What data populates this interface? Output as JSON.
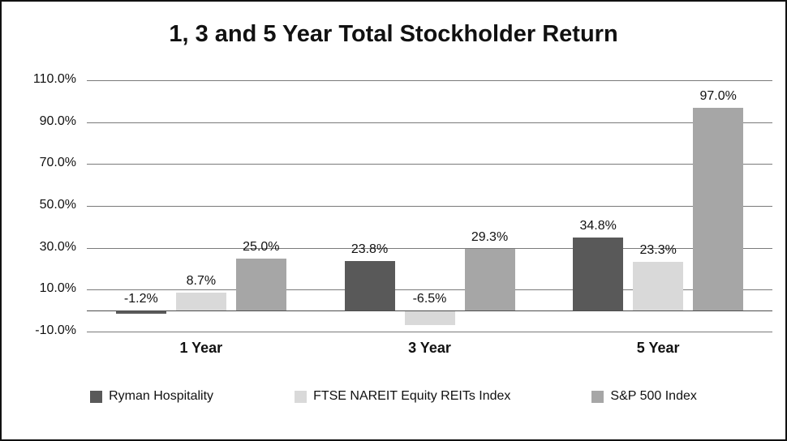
{
  "chart_data": {
    "type": "bar",
    "title": "1, 3 and 5 Year Total Stockholder Return",
    "categories": [
      "1 Year",
      "3 Year",
      "5 Year"
    ],
    "series": [
      {
        "name": "Ryman Hospitality",
        "color": "#595959",
        "values": [
          -1.2,
          23.8,
          34.8
        ]
      },
      {
        "name": "FTSE NAREIT Equity REITs Index",
        "color": "#d9d9d9",
        "values": [
          8.7,
          -6.5,
          23.3
        ]
      },
      {
        "name": "S&P 500 Index",
        "color": "#a6a6a6",
        "values": [
          25.0,
          29.3,
          97.0
        ]
      }
    ],
    "data_labels": [
      [
        "-1.2%",
        "23.8%",
        "34.8%"
      ],
      [
        "8.7%",
        "-6.5%",
        "23.3%"
      ],
      [
        "25.0%",
        "29.3%",
        "97.0%"
      ]
    ],
    "ylim": [
      -10,
      110
    ],
    "yticks": [
      -10,
      10,
      30,
      50,
      70,
      90,
      110
    ],
    "ytick_labels": [
      "-10.0%",
      "10.0%",
      "30.0%",
      "50.0%",
      "70.0%",
      "90.0%",
      "110.0%"
    ],
    "xlabel": "",
    "ylabel": "",
    "grid": true,
    "legend_position": "bottom"
  }
}
